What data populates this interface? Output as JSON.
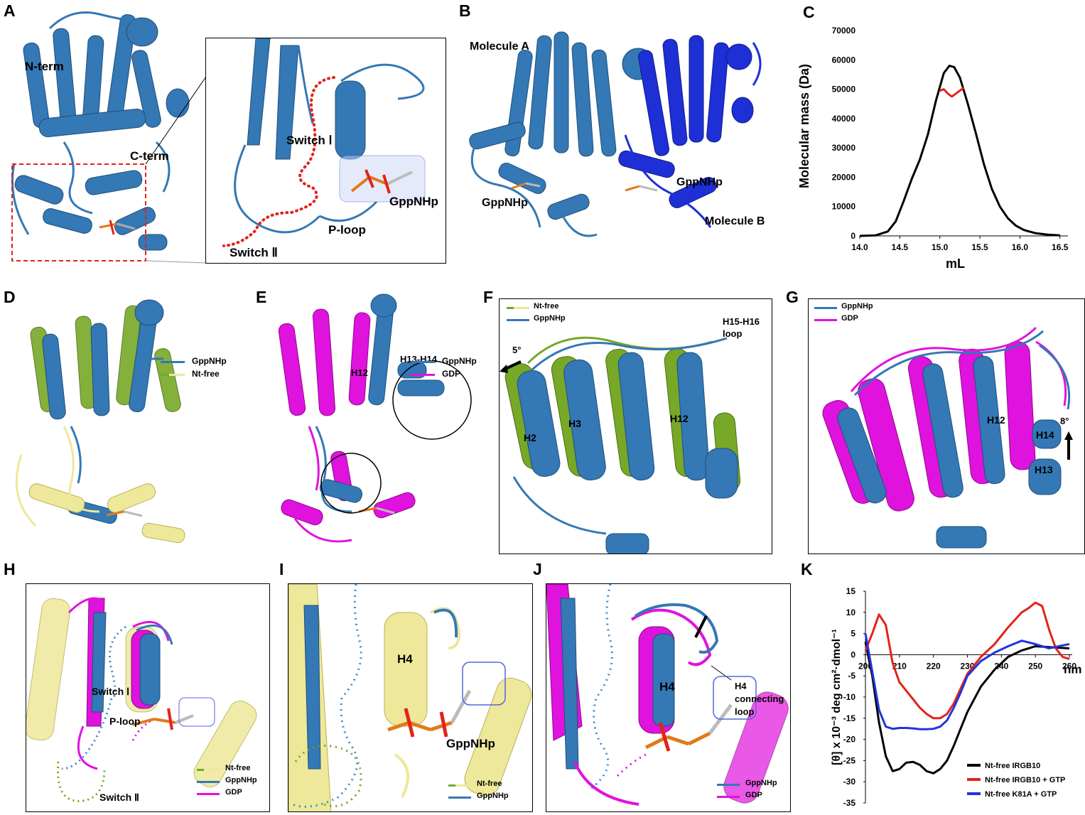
{
  "colors": {
    "steel_blue": "#3478b5",
    "deep_blue": "#1f2fd6",
    "olive_green": "#77a828",
    "pale_yellow": "#eee89a",
    "magenta": "#e012de",
    "red_dotted": "#e2231a",
    "blue_dotted": "#3d8ad0",
    "green_dotted": "#7aa31a"
  },
  "panel_a": {
    "letter": "A",
    "n_term": "N-term",
    "c_term": "C-term",
    "switch_1": "Switch Ⅰ",
    "switch_2": "Switch Ⅱ",
    "p_loop": "P-loop",
    "ligand": "GppNHp"
  },
  "panel_b": {
    "letter": "B",
    "molecule_a": "Molecule A",
    "molecule_b": "Molecule B",
    "ligand_left": "GppNHp",
    "ligand_right": "GppNHp"
  },
  "panel_d": {
    "letter": "D",
    "legend": [
      "GppNHp",
      "Nt-free"
    ]
  },
  "panel_e": {
    "letter": "E",
    "h12": "H12",
    "h13_h14": "H13-H14",
    "legend": [
      "GppNHp",
      "GDP"
    ]
  },
  "panel_f": {
    "letter": "F",
    "legend": [
      "Nt-free",
      "GppNHp"
    ],
    "loop_label_1": "H15-H16",
    "loop_label_2": "loop",
    "angle": "5°",
    "h2": "H2",
    "h3": "H3",
    "h12": "H12"
  },
  "panel_g": {
    "letter": "G",
    "legend": [
      "GppNHp",
      "GDP"
    ],
    "h12": "H12",
    "h13": "H13",
    "h14": "H14",
    "angle": "8°"
  },
  "panel_h": {
    "letter": "H",
    "switch_1": "Switch Ⅰ",
    "switch_2": "Switch Ⅱ",
    "p_loop": "P-loop",
    "legend": [
      "Nt-free",
      "GppNHp",
      "GDP"
    ]
  },
  "panel_i": {
    "letter": "I",
    "h4": "H4",
    "ligand": "GppNHp",
    "legend": [
      "Nt-free",
      "GppNHp"
    ]
  },
  "panel_j": {
    "letter": "J",
    "h4": "H4",
    "loop_note_1": "H4",
    "loop_note_2": "connecting",
    "loop_note_3": "loop",
    "legend": [
      "GppNHp",
      "GDP"
    ]
  },
  "chart_data": [
    {
      "panel": "C",
      "type": "line",
      "title": "",
      "xlabel": "mL",
      "ylabel": "Molecular mass (Da)",
      "xlim": [
        14.0,
        16.6
      ],
      "ylim": [
        0,
        70000
      ],
      "x_ticks": [
        "14.0",
        "14.5",
        "15.0",
        "15.5",
        "16.0",
        "16.5"
      ],
      "y_ticks": [
        "0",
        "10000",
        "20000",
        "30000",
        "40000",
        "50000",
        "60000",
        "70000"
      ],
      "series": [
        {
          "color": "#000000",
          "x": [
            14.0,
            14.2,
            14.35,
            14.45,
            14.55,
            14.65,
            14.75,
            14.85,
            14.95,
            15.05,
            15.12,
            15.18,
            15.25,
            15.35,
            15.45,
            15.55,
            15.65,
            15.75,
            15.85,
            15.95,
            16.05,
            16.2,
            16.35,
            16.5
          ],
          "y": [
            0,
            200,
            1500,
            5000,
            12000,
            19500,
            26000,
            34500,
            46000,
            55500,
            58000,
            57500,
            54000,
            45000,
            35000,
            24500,
            16000,
            10000,
            6000,
            3500,
            2000,
            900,
            400,
            200
          ]
        },
        {
          "color": "#e2231a",
          "x": [
            15.0,
            15.05,
            15.1,
            15.15,
            15.2,
            15.25,
            15.3
          ],
          "y": [
            49500,
            50000,
            48500,
            47500,
            48500,
            49500,
            50500
          ]
        }
      ]
    },
    {
      "panel": "K",
      "type": "line",
      "title": "",
      "xlabel": "nm",
      "ylabel": "[θ] x 10⁻³ deg cm²·dmol⁻¹",
      "xlim": [
        200,
        260
      ],
      "ylim": [
        -35,
        15
      ],
      "x_ticks": [
        "200",
        "210",
        "220",
        "230",
        "240",
        "250",
        "260"
      ],
      "y_ticks": [
        "15",
        "10",
        "5",
        "0",
        "-5",
        "-10",
        "-15",
        "-20",
        "-25",
        "-30",
        "-35"
      ],
      "legend_placement": "bottom-right",
      "series": [
        {
          "name": "Nt-free IRGB10",
          "color": "#000000",
          "x": [
            200,
            202,
            204,
            206,
            208,
            210,
            212,
            214,
            216,
            218,
            220,
            222,
            224,
            226,
            228,
            230,
            234,
            238,
            242,
            246,
            250,
            254,
            258,
            260
          ],
          "y": [
            3,
            -5,
            -16,
            -24,
            -27.5,
            -27,
            -25.5,
            -25.3,
            -26,
            -27.5,
            -28,
            -27,
            -25,
            -21.5,
            -17.5,
            -13.5,
            -7.5,
            -3.5,
            -0.5,
            1,
            2,
            1.8,
            1.6,
            1.5
          ]
        },
        {
          "name": "Nt-free IRGB10 + GTP",
          "color": "#e2231a",
          "x": [
            200,
            202,
            204,
            206,
            208,
            210,
            212,
            214,
            216,
            218,
            220,
            222,
            224,
            226,
            228,
            230,
            234,
            238,
            242,
            246,
            248,
            250,
            252,
            254,
            256,
            258,
            260
          ],
          "y": [
            1,
            5,
            9.5,
            7,
            -2,
            -6.5,
            -8.5,
            -10.5,
            -12.5,
            -14,
            -15,
            -15,
            -14,
            -11.5,
            -8,
            -4.5,
            -0.5,
            2.5,
            6.5,
            10,
            11,
            12.3,
            11.5,
            6,
            1.5,
            -0.5,
            -1
          ]
        },
        {
          "name": "Nt-free K81A + GTP",
          "color": "#2233dd",
          "x": [
            200,
            202,
            204,
            206,
            208,
            210,
            212,
            214,
            216,
            218,
            220,
            222,
            224,
            226,
            228,
            230,
            234,
            238,
            242,
            246,
            250,
            254,
            258,
            260
          ],
          "y": [
            5,
            -4,
            -13,
            -17,
            -17.5,
            -17.3,
            -17.3,
            -17.4,
            -17.6,
            -17.6,
            -17.5,
            -17,
            -15.5,
            -12.5,
            -9,
            -5,
            -1.5,
            0.5,
            2,
            3.3,
            2.5,
            1.5,
            2.2,
            2.5
          ]
        }
      ]
    }
  ]
}
